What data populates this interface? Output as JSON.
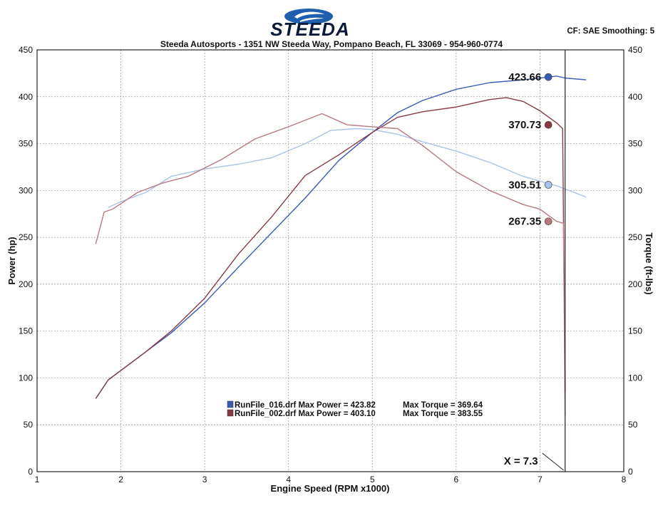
{
  "header": {
    "brand": "STEEDA",
    "subtitle": "Steeda Autosports - 1351 NW Steeda Way, Pompano Beach, FL 33069 - 954-960-0774",
    "settings": "CF: SAE  Smoothing: 5"
  },
  "colors": {
    "run016_power": "#3a5bb5",
    "run016_torque": "#a9c3e8",
    "run002_power": "#8a3a44",
    "run002_torque": "#b87a80",
    "cursor": "#222222",
    "grid": "#9a9a9a"
  },
  "chart_data": {
    "type": "line",
    "xlabel": "Engine Speed (RPM x1000)",
    "ylabel_left": "Power (hp)",
    "ylabel_right": "Torque (ft-lbs)",
    "xlim": [
      1,
      8
    ],
    "ylim_left": [
      0,
      450
    ],
    "ylim_right": [
      0,
      450
    ],
    "x_ticks": [
      1,
      2,
      3,
      4,
      5,
      6,
      7,
      8
    ],
    "y_ticks_left": [
      0,
      50,
      100,
      150,
      200,
      250,
      300,
      350,
      400,
      450
    ],
    "y_ticks_right": [
      0,
      50,
      100,
      150,
      200,
      250,
      300,
      350,
      400,
      450
    ],
    "grid": true,
    "cursor": {
      "x": 7.3,
      "label": "X = 7.3"
    },
    "series": [
      {
        "key": "run016_power",
        "axis": "left",
        "x": [
          1.7,
          1.85,
          2.0,
          2.3,
          2.6,
          3.0,
          3.4,
          3.8,
          4.2,
          4.6,
          5.0,
          5.3,
          5.6,
          6.0,
          6.4,
          6.8,
          7.0,
          7.2,
          7.3,
          7.55
        ],
        "y": [
          78,
          98,
          108,
          128,
          148,
          180,
          218,
          255,
          292,
          332,
          362,
          383,
          396,
          408,
          415,
          418,
          420,
          422,
          420,
          418
        ]
      },
      {
        "key": "run016_torque",
        "axis": "right",
        "x": [
          1.85,
          2.0,
          2.3,
          2.6,
          3.0,
          3.4,
          3.8,
          4.2,
          4.5,
          4.8,
          5.0,
          5.3,
          5.6,
          6.0,
          6.4,
          6.8,
          7.0,
          7.2,
          7.55
        ],
        "y": [
          282,
          288,
          298,
          315,
          323,
          328,
          335,
          350,
          364,
          366,
          365,
          360,
          352,
          342,
          330,
          315,
          310,
          305,
          293
        ]
      },
      {
        "key": "run002_power",
        "axis": "left",
        "x": [
          1.7,
          1.85,
          2.0,
          2.3,
          2.6,
          3.0,
          3.4,
          3.8,
          4.2,
          4.6,
          5.0,
          5.3,
          5.6,
          6.0,
          6.4,
          6.6,
          6.8,
          7.0,
          7.2,
          7.27,
          7.3
        ],
        "y": [
          78,
          98,
          108,
          128,
          150,
          185,
          232,
          272,
          316,
          338,
          362,
          378,
          384,
          389,
          397,
          399,
          395,
          385,
          372,
          366,
          85
        ]
      },
      {
        "key": "run002_torque",
        "axis": "right",
        "x": [
          1.7,
          1.8,
          1.9,
          2.0,
          2.2,
          2.5,
          2.8,
          3.2,
          3.6,
          4.0,
          4.4,
          4.7,
          5.0,
          5.3,
          5.6,
          6.0,
          6.4,
          6.8,
          7.0,
          7.2,
          7.28,
          7.3
        ],
        "y": [
          243,
          277,
          280,
          286,
          298,
          308,
          315,
          333,
          355,
          368,
          382,
          370,
          368,
          366,
          348,
          320,
          300,
          285,
          280,
          267,
          265,
          60
        ]
      }
    ],
    "markers": [
      {
        "key": "run016_power",
        "x": 7.1,
        "y": 421,
        "label": "423.66"
      },
      {
        "key": "run002_power",
        "x": 7.1,
        "y": 370,
        "label": "370.73"
      },
      {
        "key": "run016_torque",
        "x": 7.1,
        "y": 306,
        "label": "305.51"
      },
      {
        "key": "run002_torque",
        "x": 7.1,
        "y": 267,
        "label": "267.35"
      }
    ],
    "legend": {
      "placement": "lower-middle",
      "entries": [
        {
          "key": "run016_power",
          "text": "RunFile_016.drf Max Power = 423.82",
          "torque": "Max Torque = 369.64"
        },
        {
          "key": "run002_power",
          "text": "RunFile_002.drf Max Power = 403.10",
          "torque": "Max Torque = 383.55"
        }
      ]
    }
  }
}
